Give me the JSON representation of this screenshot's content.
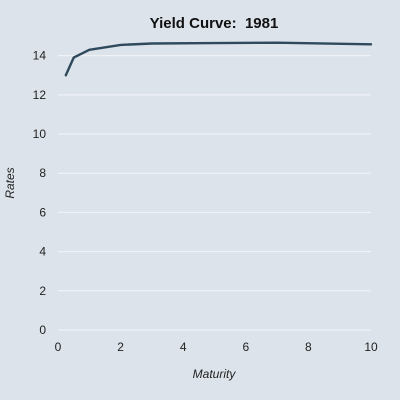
{
  "colors": {
    "background": "#dde3ea",
    "grid": "#f3f5f8",
    "series": "#2e4a5c"
  },
  "chart_data": {
    "type": "line",
    "title": "Yield Curve:  1981",
    "xlabel": "Maturity",
    "ylabel": "Rates",
    "xlim": [
      0,
      10
    ],
    "ylim": [
      0,
      14.8
    ],
    "xticks": [
      0,
      2,
      4,
      6,
      8,
      10
    ],
    "yticks": [
      0,
      2,
      4,
      6,
      8,
      10,
      12,
      14
    ],
    "grid": "horizontal",
    "x": [
      0.25,
      0.5,
      1,
      2,
      3,
      5,
      7,
      10
    ],
    "series": [
      {
        "values": [
          13.0,
          13.9,
          14.3,
          14.55,
          14.62,
          14.64,
          14.66,
          14.58
        ]
      }
    ]
  }
}
